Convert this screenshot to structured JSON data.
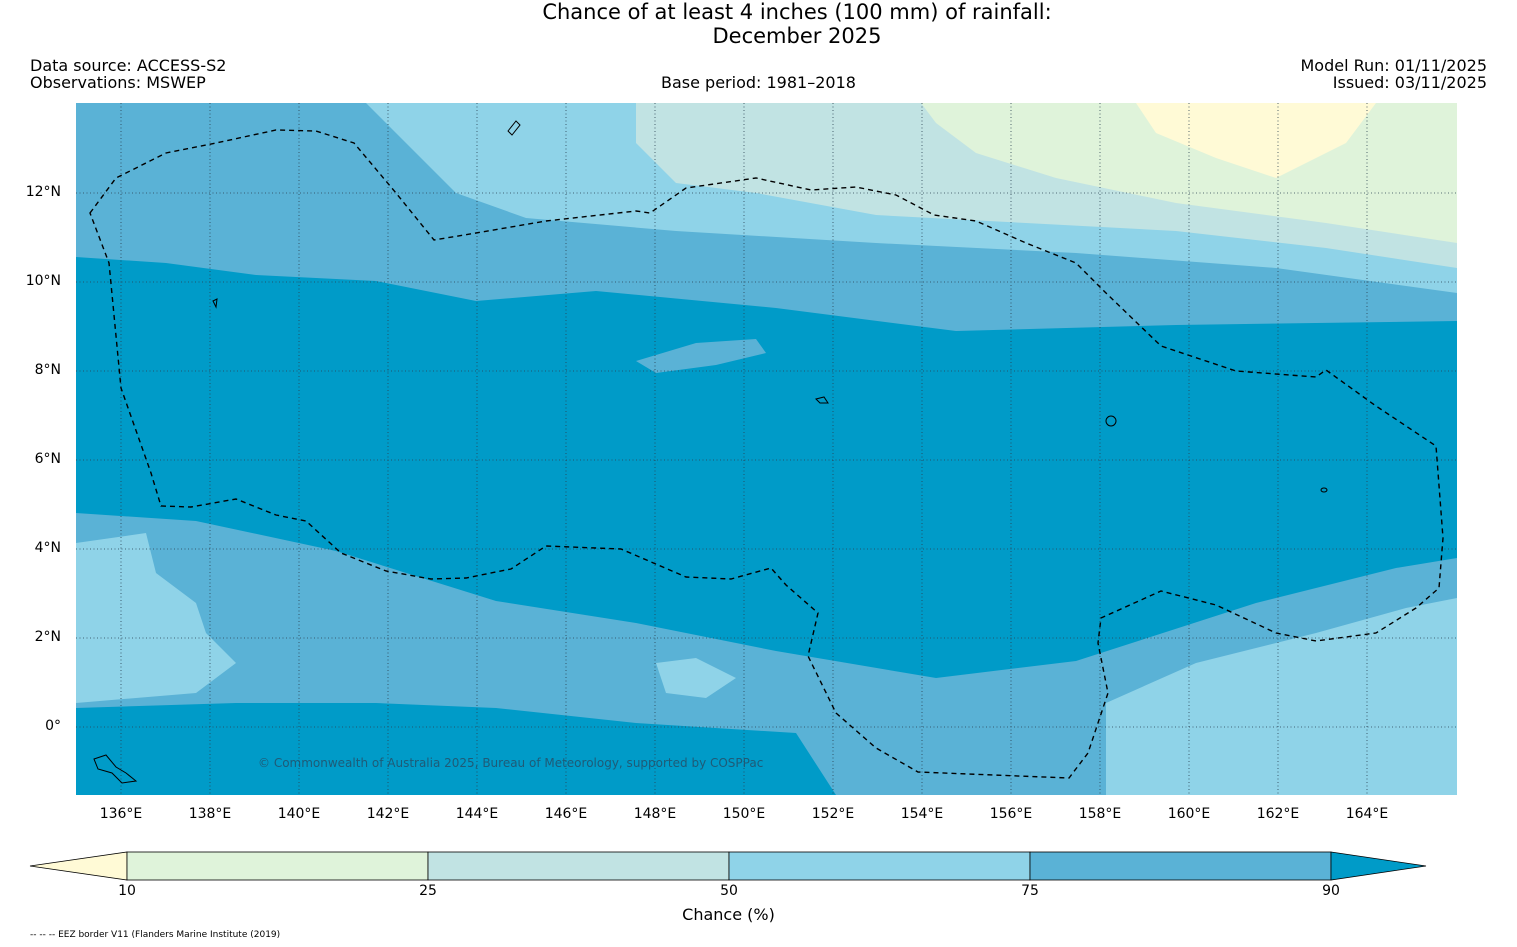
{
  "title": {
    "line1": "Chance of at least 4 inches (100  mm) of rainfall:",
    "line2": "December 2025"
  },
  "header": {
    "data_source": "Data source: ACCESS-S2",
    "observations": "Observations: MSWEP",
    "base_period": "Base period: 1981–2018",
    "model_run": "Model Run: 01/11/2025",
    "issued": "Issued: 03/11/2025"
  },
  "map": {
    "longitude_labels": [
      "136°E",
      "138°E",
      "140°E",
      "142°E",
      "144°E",
      "146°E",
      "148°E",
      "150°E",
      "152°E",
      "154°E",
      "156°E",
      "158°E",
      "160°E",
      "162°E",
      "164°E"
    ],
    "latitude_labels": [
      "12°N",
      "10°N",
      "8°N",
      "6°N",
      "4°N",
      "2°N",
      "0°"
    ],
    "extent": {
      "lon_min": 135,
      "lon_max": 166,
      "lat_min": -1.5,
      "lat_max": 14
    },
    "copyright": "© Commonwealth of Australia 2025, Bureau of Meteorology, supported by COSPPac",
    "border_layer": "EEZ border"
  },
  "colorbar": {
    "label": "Chance (%)",
    "tick_labels": [
      "10",
      "25",
      "50",
      "75",
      "90"
    ],
    "bands": [
      {
        "range": "<10",
        "color": "#fffad6"
      },
      {
        "range": "10-25",
        "color": "#dff3da"
      },
      {
        "range": "25-50",
        "color": "#c1e3e3"
      },
      {
        "range": "50-75",
        "color": "#8fd3e8"
      },
      {
        "range": "75-90",
        "color": "#5ab2d6"
      },
      {
        "range": ">90",
        "color": "#009bc8"
      }
    ]
  },
  "footnote": "-- -- -- EEZ border V11 (Flanders Marine Institute (2019)"
}
